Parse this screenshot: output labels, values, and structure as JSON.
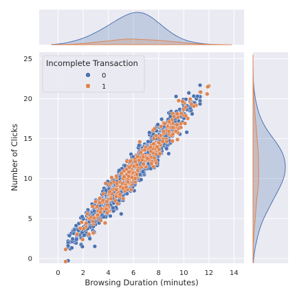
{
  "chart_data": {
    "type": "scatter",
    "subtype": "jointplot",
    "xlabel": "Browsing Duration (minutes)",
    "ylabel": "Number of Clicks",
    "xlim": [
      -1.5,
      14.8
    ],
    "ylim": [
      -0.6,
      25.8
    ],
    "xticks": [
      0,
      2,
      4,
      6,
      8,
      10,
      12,
      14
    ],
    "yticks": [
      0,
      5,
      10,
      15,
      20,
      25
    ],
    "grid": true,
    "legend": {
      "title": "Incomplete Transaction",
      "position": "top-left",
      "entries": [
        "0",
        "1"
      ]
    },
    "series": [
      {
        "name": "0",
        "color": "#4c72b0",
        "trend": {
          "slope": 1.78,
          "intercept": 0.3,
          "x_range": [
            0.8,
            11.3
          ],
          "y_noise_sd": 0.95,
          "approx_count": 1500
        }
      },
      {
        "name": "1",
        "color": "#dd8452",
        "trend": {
          "slope": 1.78,
          "intercept": 0.3,
          "x_range": [
            0.6,
            12.0
          ],
          "y_noise_sd": 0.95,
          "approx_count": 300
        }
      }
    ],
    "marginals": {
      "x_density": {
        "type": "kde",
        "fill": true
      },
      "y_density": {
        "type": "kde",
        "fill": true
      }
    },
    "style": {
      "background": "#eaeaf2",
      "grid_color": "#ffffff"
    }
  }
}
